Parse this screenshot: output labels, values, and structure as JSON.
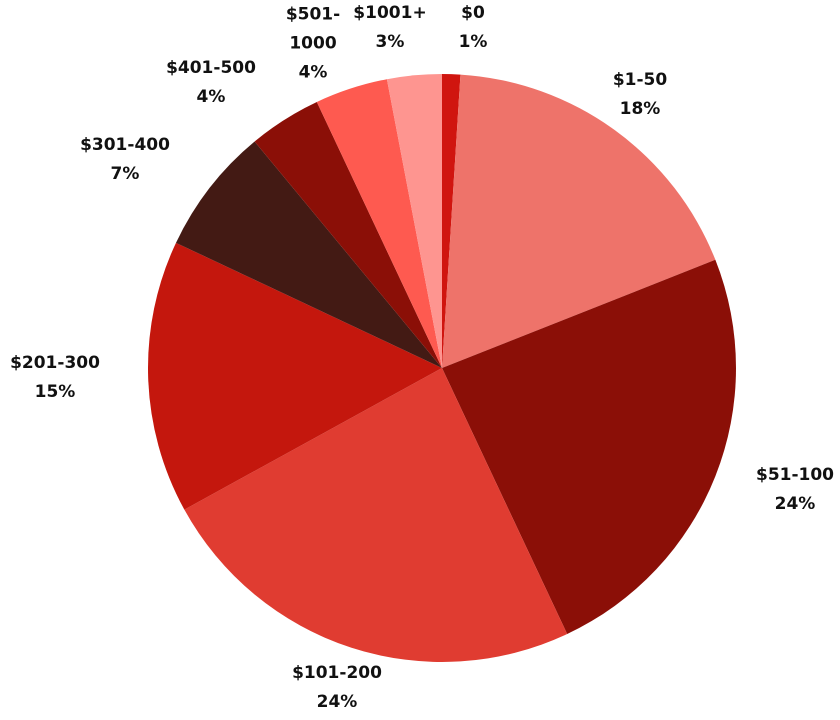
{
  "chart_data": {
    "type": "pie",
    "categories": [
      "$0",
      "$1-50",
      "$51-100",
      "$101-200",
      "$201-300",
      "$301-400",
      "$401-500",
      "$501-1000",
      "$1001+"
    ],
    "values": [
      1,
      18,
      24,
      24,
      15,
      7,
      4,
      4,
      3
    ],
    "value_labels": [
      "1%",
      "18%",
      "24%",
      "24%",
      "15%",
      "7%",
      "4%",
      "4%",
      "3%"
    ],
    "colors": [
      "#d0150f",
      "#ee736a",
      "#8b0f07",
      "#e03c31",
      "#c4170d",
      "#431a14",
      "#8b0f07",
      "#fe5a50",
      "#fe9590"
    ]
  }
}
